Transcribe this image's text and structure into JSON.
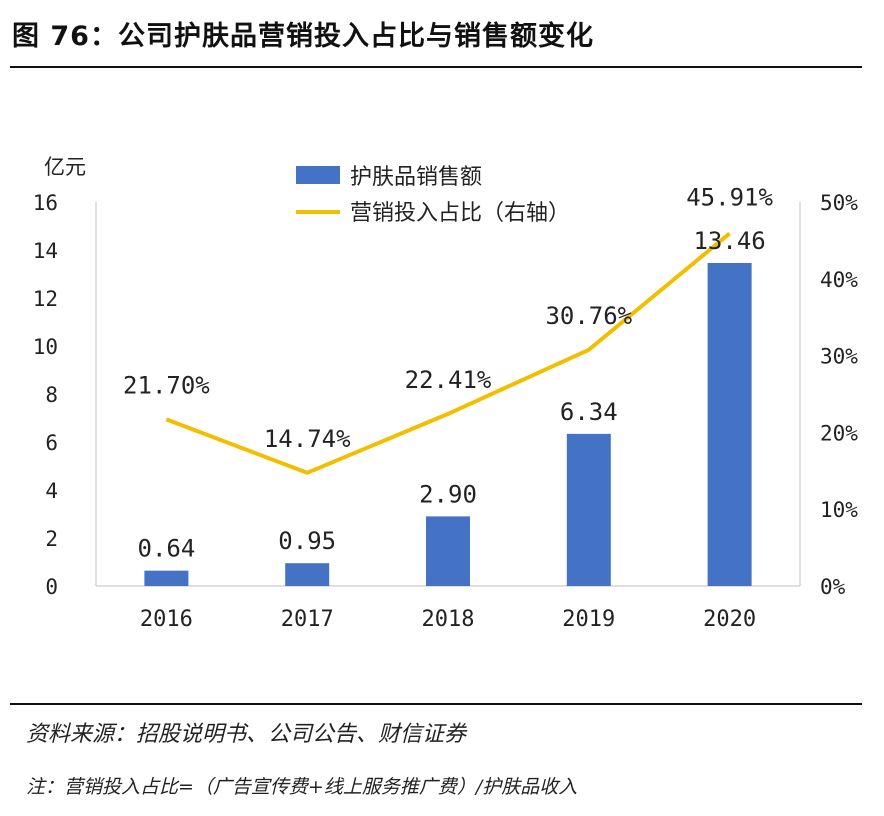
{
  "header": {
    "title": "图 76：公司护肤品营销投入占比与销售额变化"
  },
  "footer": {
    "source": "资料来源：招股说明书、公司公告、财信证券",
    "note": "注：营销投入占比=（广告宣传费+线上服务推广费）/护肤品收入"
  },
  "colors": {
    "bar": "#4472C4",
    "line": "#F2BE00",
    "axis": "#BFBFBF",
    "text": "#222222"
  },
  "chart_data": {
    "type": "bar",
    "title": "",
    "categories": [
      "2016",
      "2017",
      "2018",
      "2019",
      "2020"
    ],
    "y_unit_label": "亿元",
    "ylim": [
      0,
      16
    ],
    "y_ticks": [
      "0",
      "2",
      "4",
      "6",
      "8",
      "10",
      "12",
      "14",
      "16"
    ],
    "y2lim": [
      0,
      50
    ],
    "y2_ticks": [
      "0%",
      "10%",
      "20%",
      "30%",
      "40%",
      "50%"
    ],
    "series": [
      {
        "name": "护肤品销售额",
        "type": "bar",
        "axis": "left",
        "values": [
          0.64,
          0.95,
          2.9,
          6.34,
          13.46
        ],
        "labels": [
          "0.64",
          "0.95",
          "2.90",
          "6.34",
          "13.46"
        ]
      },
      {
        "name": "营销投入占比（右轴）",
        "type": "line",
        "axis": "right",
        "values": [
          21.7,
          14.74,
          22.41,
          30.76,
          45.91
        ],
        "labels": [
          "21.70%",
          "14.74%",
          "22.41%",
          "30.76%",
          "45.91%"
        ]
      }
    ],
    "legend_position": "top-center",
    "grid": false
  }
}
